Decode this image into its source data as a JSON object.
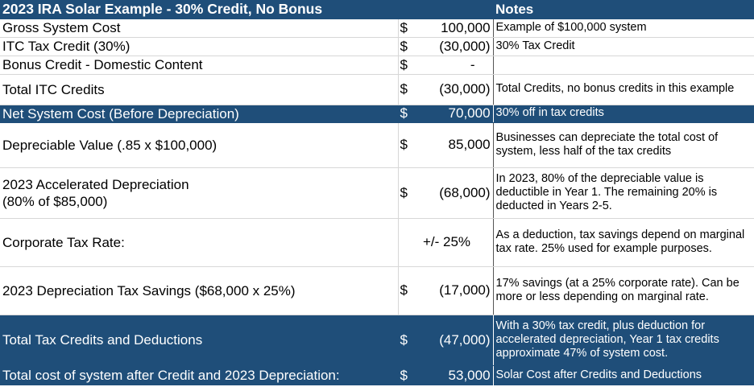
{
  "header": {
    "title": "2023 IRA Solar Example - 30% Credit, No Bonus",
    "notes_label": "Notes"
  },
  "rows": [
    {
      "label": "Gross System Cost",
      "currency": "$",
      "amount": "100,000",
      "note": "Example of $100,000 system"
    },
    {
      "label": "ITC Tax Credit (30%)",
      "currency": "$",
      "amount": "(30,000)",
      "note": "30% Tax Credit"
    },
    {
      "label": "Bonus Credit - Domestic Content",
      "currency": "$",
      "amount": "-",
      "note": ""
    },
    {
      "label": "Total ITC Credits",
      "currency": "$",
      "amount": "(30,000)",
      "note": "Total Credits, no bonus credits in this example"
    },
    {
      "label": "Net System Cost (Before Depreciation)",
      "currency": "$",
      "amount": "70,000",
      "note": "30% off in tax credits"
    },
    {
      "label": "Depreciable Value (.85 x $100,000)",
      "currency": "$",
      "amount": "85,000",
      "note": "Businesses can depreciate the total cost of system, less half of the tax credits"
    },
    {
      "label": "2023 Accelerated Depreciation\n(80% of $85,000)",
      "currency": "$",
      "amount": "(68,000)",
      "note": "In 2023, 80% of the depreciable value is deductible in Year 1.  The remaining 20% is deducted in Years 2-5."
    },
    {
      "label": "Corporate Tax Rate:",
      "currency": "",
      "amount": "+/- 25%",
      "note": "As a deduction, tax savings depend on marginal tax rate.  25% used for example purposes."
    },
    {
      "label": "2023 Depreciation Tax Savings ($68,000 x 25%)",
      "currency": "$",
      "amount": "(17,000)",
      "note": "17% savings (at a 25% corporate rate).  Can be more or less depending on marginal rate."
    },
    {
      "label": "Total Tax Credits and Deductions",
      "currency": "$",
      "amount": "(47,000)",
      "note": "With a 30% tax credit, plus deduction for accelerated depreciation, Year 1 tax credits approximate 47% of system cost."
    },
    {
      "label": "Total cost of system after Credit and 2023 Depreciation:",
      "currency": "$",
      "amount": "53,000",
      "note": "Solar Cost after Credits and Deductions"
    }
  ],
  "colors": {
    "header_fill": "#1f4e79",
    "header_text": "#ffffff",
    "body_text": "#000000"
  }
}
